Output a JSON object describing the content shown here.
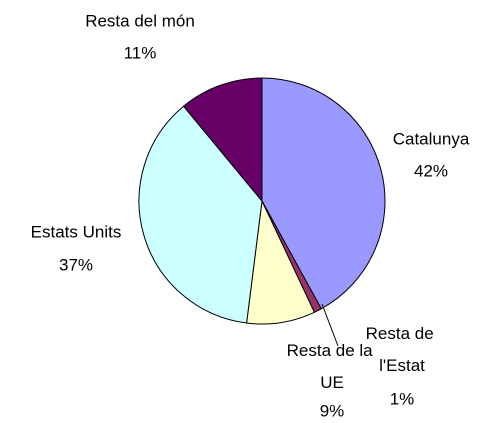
{
  "chart_data": {
    "type": "pie",
    "categories": [
      "Catalunya",
      "Resta de l'Estat",
      "Resta de la UE",
      "Estats Units",
      "Resta del món"
    ],
    "values": [
      42,
      1,
      9,
      37,
      11
    ],
    "value_labels": [
      "42%",
      "1%",
      "9%",
      "37%",
      "11%"
    ],
    "colors": [
      "#9999ff",
      "#993366",
      "#ffffcc",
      "#ccffff",
      "#660066"
    ]
  }
}
